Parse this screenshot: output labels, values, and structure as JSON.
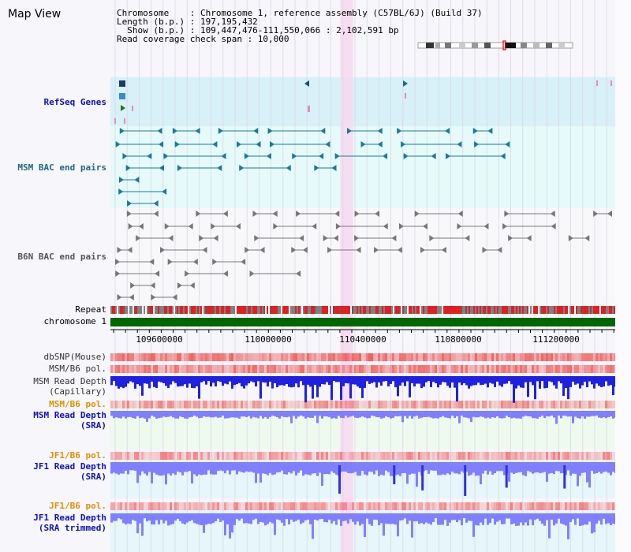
{
  "header": {
    "title": "Map View",
    "chromosome_line": "Chromosome    : Chromosome 1, reference assembly (C57BL/6J) (Build 37)",
    "length_line": "Length (b.p.) : 197,195,432",
    "show_line": "  Show (b.p.) : 109,447,476-111,550,066 : 2,102,591 bp",
    "coverage_line": "Read coverage check span : 10,000"
  },
  "tracks": {
    "refseq": "RefSeq Genes",
    "msm_bac": "MSM BAC end pairs",
    "b6n_bac": "B6N BAC end pairs",
    "repeat": "Repeat",
    "chromosome": "chromosome 1",
    "dbsnp": "dbSNP(Mouse)",
    "msm_b6_pol_1": "MSM/B6 pol.",
    "msm_depth_cap_1": "MSM Read Depth",
    "msm_depth_cap_2": "(Capillary)",
    "msm_b6_pol_2": "MSM/B6 pol.",
    "msm_depth_sra_1": "MSM Read Depth",
    "msm_depth_sra_2": "(SRA)",
    "jf1_b6_pol_1": "JF1/B6 pol.",
    "jf1_depth_sra_1": "JF1 Read Depth",
    "jf1_depth_sra_2": "(SRA)",
    "jf1_b6_pol_2": "JF1/B6 pol.",
    "jf1_depth_trim_1": "JF1 Read Depth",
    "jf1_depth_trim_2": "(SRA trimmed)"
  },
  "axis": {
    "ticks": [
      "109600000",
      "110000000",
      "110400000",
      "110800000",
      "111200000"
    ],
    "start_bp": 109447476,
    "end_bp": 111550066
  },
  "highlight": {
    "start_bp": 110405000,
    "end_bp": 110458000
  },
  "colors": {
    "refseq_bg": "#d8f0f8",
    "bac_bg": "#e6fafa",
    "b6n_bg": "#f8f8fb",
    "highlight": "#f8d8f0",
    "chromosome_bar": "#006600",
    "snp": "#f05050",
    "depth_cap": "#2020e0",
    "depth_sra": "#8080ff"
  }
}
